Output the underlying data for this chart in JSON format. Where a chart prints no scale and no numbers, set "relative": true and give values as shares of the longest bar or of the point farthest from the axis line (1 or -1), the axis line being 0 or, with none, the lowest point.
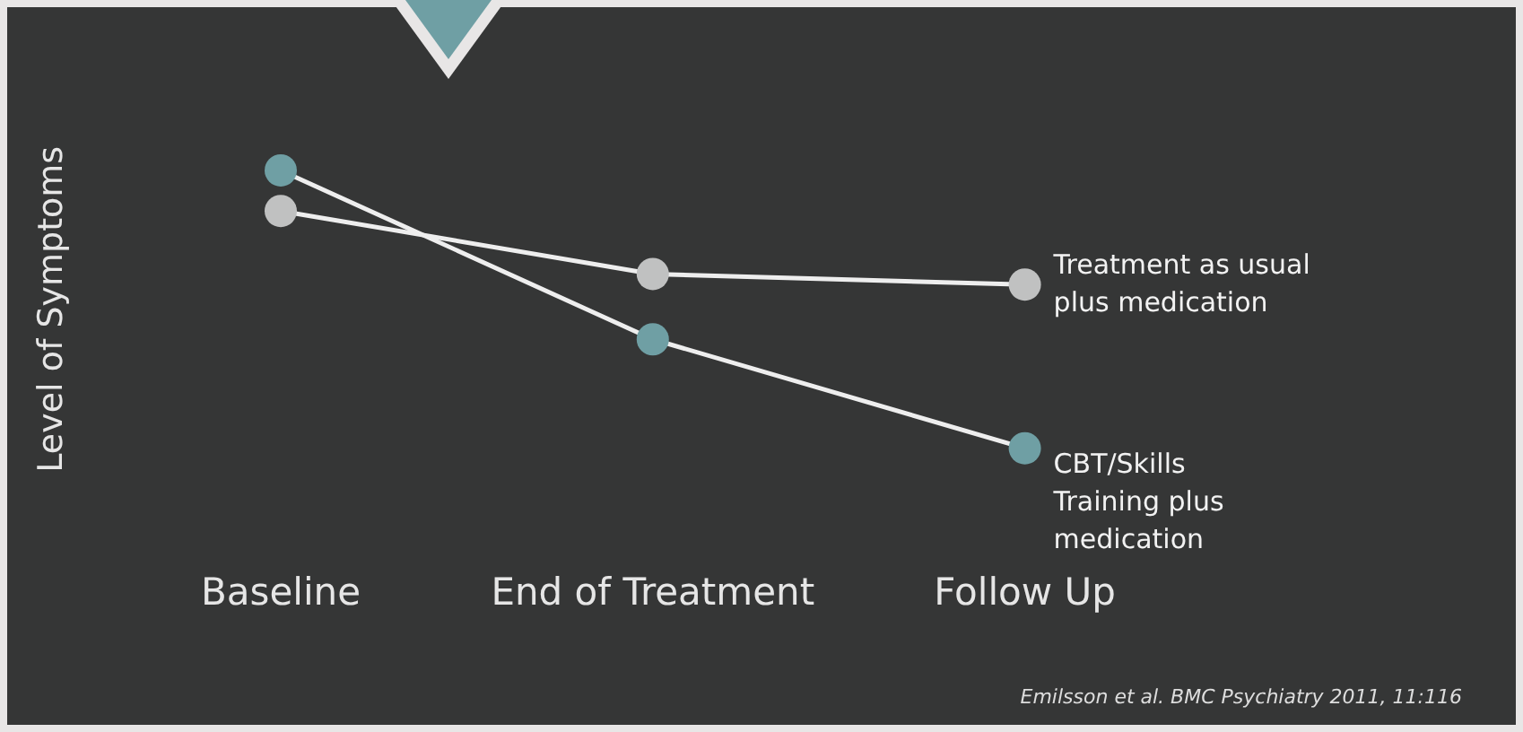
{
  "chart_data": {
    "type": "line",
    "relative": true,
    "ylabel": "Level of Symptoms",
    "categories": [
      "Baseline",
      "End of Treatment",
      "Follow Up"
    ],
    "marker": "circle",
    "series": [
      {
        "name": "Treatment as usual plus medication",
        "color": "#c0c1c1",
        "values": [
          0.854,
          0.627,
          0.589
        ]
      },
      {
        "name": "CBT/Skills Training plus medication",
        "color": "#6f9fa4",
        "values": [
          1,
          0.392,
          0
        ]
      }
    ],
    "annotations": [
      "Emilsson et al. BMC Psychiatry 2011, 11:116"
    ]
  }
}
